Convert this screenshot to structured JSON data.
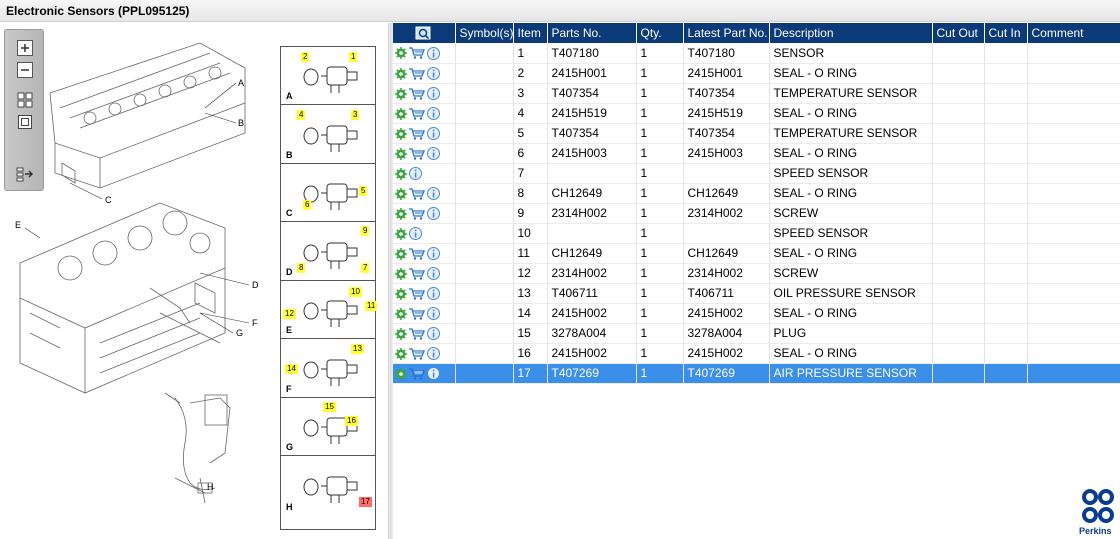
{
  "window": {
    "title": "Electronic Sensors (PPL095125)"
  },
  "toolbar": {
    "icons": [
      "zoom-in-icon",
      "zoom-out-icon",
      "fit-grid-icon",
      "single-view-icon",
      "export-icon"
    ]
  },
  "callouts": [
    "A",
    "B",
    "C",
    "D",
    "E",
    "F",
    "G",
    "H"
  ],
  "thumbnails": [
    {
      "letter": "A",
      "tags": [
        "2",
        "1"
      ]
    },
    {
      "letter": "B",
      "tags": [
        "4",
        "3"
      ]
    },
    {
      "letter": "C",
      "tags": [
        "5",
        "6"
      ]
    },
    {
      "letter": "D",
      "tags": [
        "9",
        "8",
        "7"
      ]
    },
    {
      "letter": "E",
      "tags": [
        "10",
        "11",
        "12"
      ]
    },
    {
      "letter": "F",
      "tags": [
        "13",
        "14"
      ]
    },
    {
      "letter": "G",
      "tags": [
        "15",
        "16"
      ]
    },
    {
      "letter": "H",
      "tags": [
        "17"
      ]
    }
  ],
  "table": {
    "headers": [
      "",
      "Symbol(s)",
      "Item",
      "Parts No.",
      "Qty.",
      "Latest Part No.",
      "Description",
      "Cut Out",
      "Cut In",
      "Comment"
    ],
    "rows": [
      {
        "cart": true,
        "item": "1",
        "parts_no": "T407180",
        "qty": "1",
        "latest": "T407180",
        "desc": "SENSOR"
      },
      {
        "cart": true,
        "item": "2",
        "parts_no": "2415H001",
        "qty": "1",
        "latest": "2415H001",
        "desc": "SEAL - O RING"
      },
      {
        "cart": true,
        "item": "3",
        "parts_no": "T407354",
        "qty": "1",
        "latest": "T407354",
        "desc": "TEMPERATURE SENSOR"
      },
      {
        "cart": true,
        "item": "4",
        "parts_no": "2415H519",
        "qty": "1",
        "latest": "2415H519",
        "desc": "SEAL - O RING"
      },
      {
        "cart": true,
        "item": "5",
        "parts_no": "T407354",
        "qty": "1",
        "latest": "T407354",
        "desc": "TEMPERATURE SENSOR"
      },
      {
        "cart": true,
        "item": "6",
        "parts_no": "2415H003",
        "qty": "1",
        "latest": "2415H003",
        "desc": "SEAL - O RING"
      },
      {
        "cart": false,
        "item": "7",
        "parts_no": "",
        "qty": "1",
        "latest": "",
        "desc": "SPEED SENSOR"
      },
      {
        "cart": true,
        "item": "8",
        "parts_no": "CH12649",
        "qty": "1",
        "latest": "CH12649",
        "desc": "SEAL - O RING"
      },
      {
        "cart": true,
        "item": "9",
        "parts_no": "2314H002",
        "qty": "1",
        "latest": "2314H002",
        "desc": "SCREW"
      },
      {
        "cart": false,
        "item": "10",
        "parts_no": "",
        "qty": "1",
        "latest": "",
        "desc": "SPEED SENSOR"
      },
      {
        "cart": true,
        "item": "11",
        "parts_no": "CH12649",
        "qty": "1",
        "latest": "CH12649",
        "desc": "SEAL - O RING"
      },
      {
        "cart": true,
        "item": "12",
        "parts_no": "2314H002",
        "qty": "1",
        "latest": "2314H002",
        "desc": "SCREW"
      },
      {
        "cart": true,
        "item": "13",
        "parts_no": "T406711",
        "qty": "1",
        "latest": "T406711",
        "desc": "OIL PRESSURE SENSOR"
      },
      {
        "cart": true,
        "item": "14",
        "parts_no": "2415H002",
        "qty": "1",
        "latest": "2415H002",
        "desc": "SEAL - O RING"
      },
      {
        "cart": true,
        "item": "15",
        "parts_no": "3278A004",
        "qty": "1",
        "latest": "3278A004",
        "desc": "PLUG"
      },
      {
        "cart": true,
        "item": "16",
        "parts_no": "2415H002",
        "qty": "1",
        "latest": "2415H002",
        "desc": "SEAL - O RING"
      },
      {
        "cart": true,
        "item": "17",
        "parts_no": "T407269",
        "qty": "1",
        "latest": "T407269",
        "desc": "AIR PRESSURE SENSOR",
        "selected": true
      }
    ]
  },
  "brand": {
    "name": "Perkins",
    "color": "#0a3d8f"
  },
  "colors": {
    "header_bg": "#0b3a79",
    "selected_row": "#3b8fe8",
    "gear": "#3aa541",
    "cart": "#2a6fc9",
    "info": "#4a8ad8",
    "tag": "#ffff33"
  }
}
